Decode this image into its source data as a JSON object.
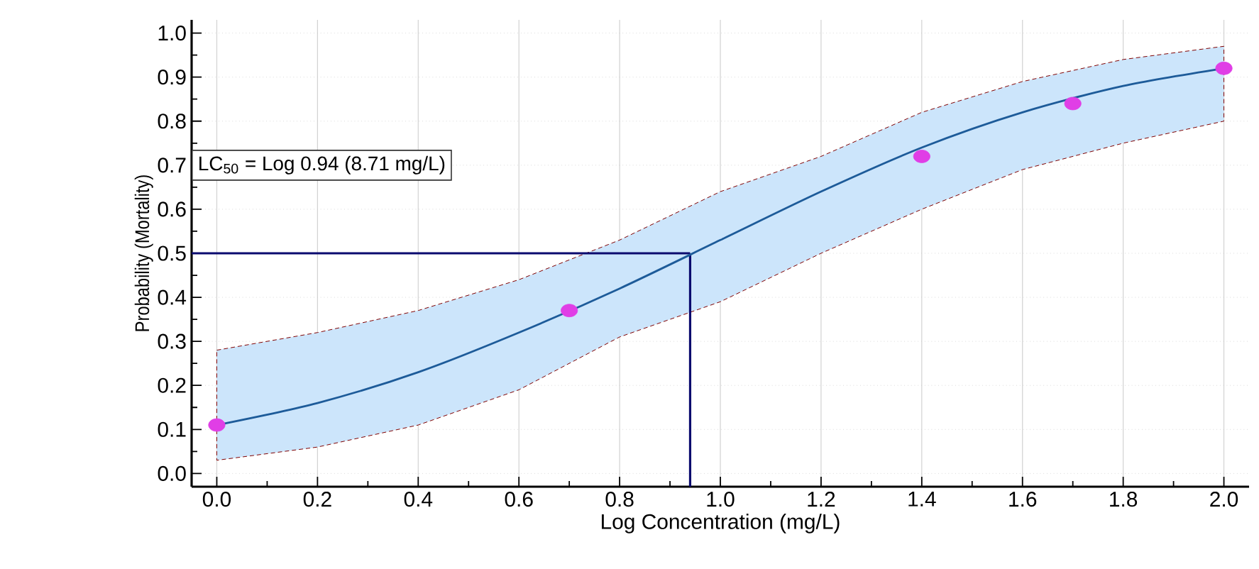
{
  "chart_data": {
    "type": "scatter",
    "xlabel": "Log Concentration (mg/L)",
    "ylabel": "Probability (Mortality)",
    "xlim": [
      -0.05,
      2.05
    ],
    "ylim": [
      -0.03,
      1.03
    ],
    "xticks": [
      {
        "value": 0,
        "label": "0.0"
      },
      0.2,
      0.4,
      0.6,
      0.8,
      {
        "value": 1,
        "label": "1.0"
      },
      1.2,
      1.4,
      1.6,
      1.8,
      {
        "value": 2,
        "label": "2.0"
      }
    ],
    "yticks": [
      {
        "value": 0,
        "label": "0.0"
      },
      0.1,
      0.2,
      0.3,
      0.4,
      0.5,
      0.6,
      0.7,
      0.8,
      0.9,
      {
        "value": 1,
        "label": "1.0"
      }
    ],
    "grid": true,
    "marker": "circle",
    "series": [
      {
        "type": "line",
        "marker": "none",
        "color": "#1d5b99",
        "x": [
          0,
          0.2,
          0.4,
          0.6,
          0.8,
          1.0,
          1.2,
          1.4,
          1.6,
          1.8,
          2.0
        ],
        "values": [
          0.11,
          0.16,
          0.23,
          0.32,
          0.42,
          0.53,
          0.64,
          0.74,
          0.82,
          0.88,
          0.92
        ],
        "lower": [
          0.03,
          0.06,
          0.11,
          0.19,
          0.31,
          0.39,
          0.5,
          0.6,
          0.69,
          0.75,
          0.8
        ],
        "upper": [
          0.28,
          0.32,
          0.37,
          0.44,
          0.53,
          0.64,
          0.72,
          0.82,
          0.89,
          0.94,
          0.97
        ]
      },
      {
        "color": "#e03ee6",
        "x": [
          0,
          0.7,
          1.4,
          1.7,
          2.0
        ],
        "values": [
          0.11,
          0.37,
          0.72,
          0.84,
          0.92
        ]
      }
    ],
    "ref_lines": [
      {
        "axis": "y",
        "value": 0.5,
        "color": "#0a0a6e"
      },
      {
        "axis": "x",
        "value": 0.94,
        "color": "#0a0a6e"
      }
    ],
    "annotations": [
      "LC$_{50}$ = Log 0.94 (8.71 mg/L)"
    ]
  }
}
